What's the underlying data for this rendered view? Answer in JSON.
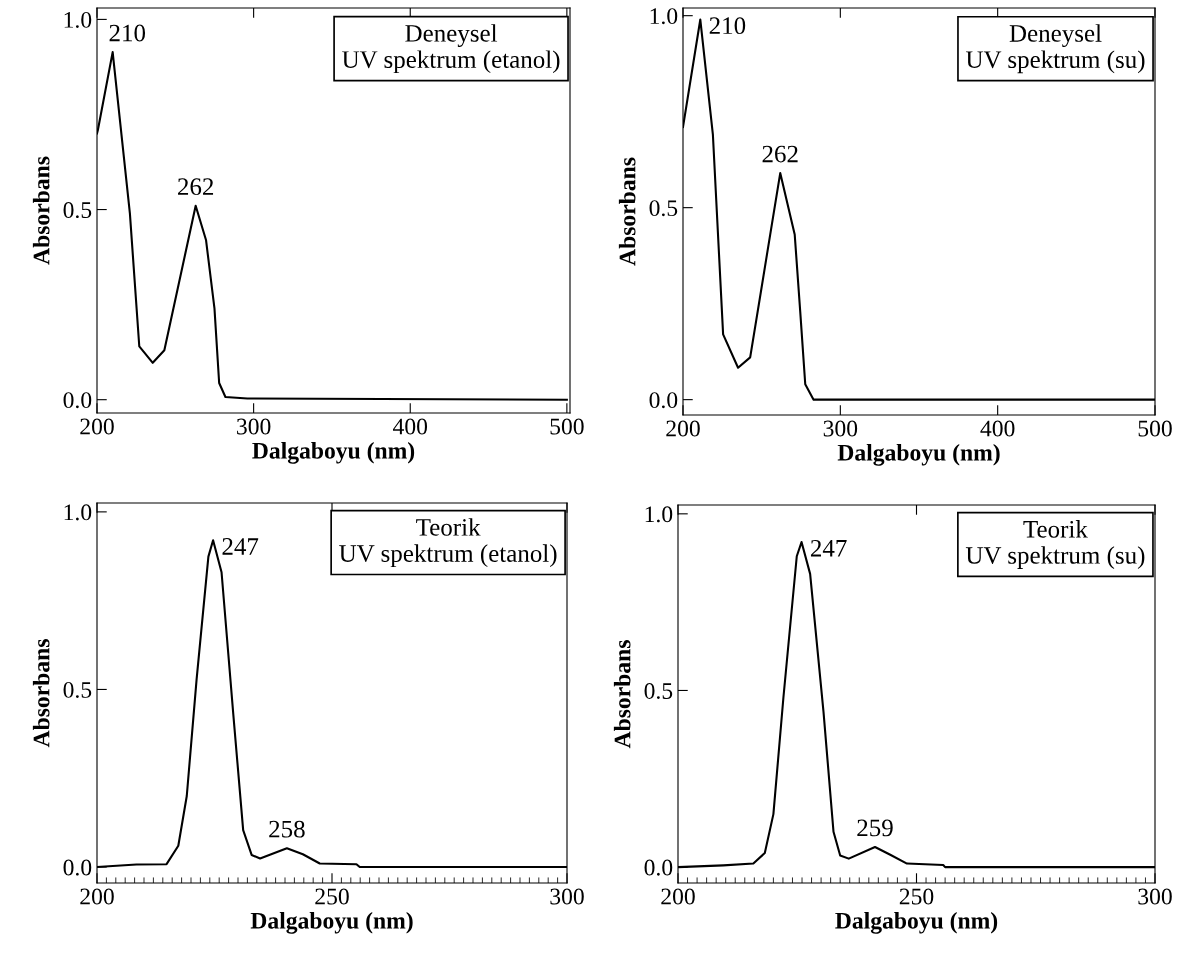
{
  "chart_data": [
    {
      "type": "line",
      "xlabel": "Dalgaboyu (nm)",
      "ylabel": "Absorbans",
      "x": [
        200,
        200.6,
        210,
        221,
        227,
        235.6,
        243,
        263,
        269.6,
        275,
        278,
        282,
        296,
        500
      ],
      "series": [
        {
          "color": "#000000",
          "values": [
            0.7,
            0.71,
            0.914,
            0.49,
            0.14,
            0.097,
            0.13,
            0.51,
            0.42,
            0.24,
            0.044,
            0.007,
            0.003,
            0.0
          ]
        }
      ],
      "xlim": [
        200,
        502
      ],
      "ylim": [
        -0.035,
        1.03
      ],
      "xticks": [
        200,
        300,
        400,
        500
      ],
      "yticks": [
        {
          "value": 0,
          "label": "0.0"
        },
        {
          "value": 0.5,
          "label": "0.5"
        },
        {
          "value": 1,
          "label": "1.0"
        }
      ],
      "annotations": [
        "Deneysel\nUV spektrum (etanol)",
        {
          "text": "210",
          "x": 210,
          "y": 0.914
        },
        {
          "text": "262",
          "x": 263,
          "y": 0.51
        }
      ],
      "grid": false,
      "legend": false,
      "marker": "none",
      "line_style": "solid"
    },
    {
      "type": "line",
      "xlabel": "Dalgaboyu (nm)",
      "ylabel": "Absorbans",
      "x": [
        200,
        211,
        219,
        225.5,
        235,
        242.7,
        261.8,
        271,
        274.5,
        277.7,
        283,
        500
      ],
      "series": [
        {
          "color": "#000000",
          "values": [
            0.71,
            0.99,
            0.69,
            0.17,
            0.083,
            0.11,
            0.59,
            0.43,
            0.23,
            0.04,
            0.0,
            0.0
          ]
        }
      ],
      "xlim": [
        200,
        500
      ],
      "ylim": [
        -0.04,
        1.02
      ],
      "xticks": [
        200,
        300,
        400,
        500
      ],
      "yticks": [
        {
          "value": 0,
          "label": "0.0"
        },
        {
          "value": 0.5,
          "label": "0.5"
        },
        {
          "value": 1,
          "label": "1.0"
        }
      ],
      "annotations": [
        "Deneysel\nUV spektrum (su)",
        {
          "text": "210",
          "x": 211,
          "y": 0.99
        },
        {
          "text": "262",
          "x": 261.8,
          "y": 0.59
        }
      ],
      "grid": false,
      "legend": false,
      "marker": "none",
      "line_style": "solid"
    },
    {
      "type": "line",
      "xlabel": "Dalgaboyu (nm)",
      "ylabel": "Absorbans",
      "x": [
        200,
        208.4,
        214.8,
        217.3,
        219.1,
        221.2,
        223.7,
        224.7,
        226.5,
        229,
        231.1,
        232.9,
        234.7,
        240.4,
        243.8,
        247.4,
        255.2,
        255.9,
        300
      ],
      "series": [
        {
          "color": "#000000",
          "values": [
            0.0,
            0.007,
            0.008,
            0.06,
            0.2,
            0.53,
            0.874,
            0.92,
            0.83,
            0.43,
            0.104,
            0.034,
            0.024,
            0.053,
            0.036,
            0.01,
            0.008,
            0.0,
            0.0
          ]
        }
      ],
      "xlim": [
        200,
        300
      ],
      "ylim": [
        -0.045,
        1.025
      ],
      "xticks": [
        200,
        250,
        300
      ],
      "yticks": [
        {
          "value": 0,
          "label": "0.0"
        },
        {
          "value": 0.5,
          "label": "0.5"
        },
        {
          "value": 1,
          "label": "1.0"
        }
      ],
      "annotations": [
        "Teorik\nUV spektrum (etanol)",
        {
          "text": "247",
          "x": 224.7,
          "y": 0.92
        },
        {
          "text": "258",
          "x": 240.4,
          "y": 0.053
        }
      ],
      "grid": false,
      "legend": false,
      "marker": "none",
      "line_style": "solid"
    },
    {
      "type": "line",
      "xlabel": "Dalgaboyu (nm)",
      "ylabel": "Absorbans",
      "x": [
        200,
        209.5,
        215.8,
        218.2,
        220,
        222.1,
        224.9,
        225.9,
        227.7,
        230.5,
        232.6,
        234,
        235.8,
        241.3,
        244.5,
        248,
        255.6,
        256,
        300
      ],
      "series": [
        {
          "color": "#000000",
          "values": [
            0.0,
            0.005,
            0.01,
            0.04,
            0.15,
            0.48,
            0.88,
            0.92,
            0.83,
            0.44,
            0.1,
            0.033,
            0.024,
            0.057,
            0.035,
            0.01,
            0.006,
            0.0,
            0.0
          ]
        }
      ],
      "xlim": [
        200,
        300
      ],
      "ylim": [
        -0.045,
        1.025
      ],
      "xticks": [
        200,
        250,
        300
      ],
      "yticks": [
        {
          "value": 0,
          "label": "0.0"
        },
        {
          "value": 0.5,
          "label": "0.5"
        },
        {
          "value": 1,
          "label": "1.0"
        }
      ],
      "annotations": [
        "Teorik\nUV spektrum (su)",
        {
          "text": "247",
          "x": 225.9,
          "y": 0.92
        },
        {
          "text": "259",
          "x": 241.3,
          "y": 0.057
        }
      ],
      "grid": false,
      "legend": false,
      "marker": "none",
      "line_style": "solid"
    }
  ]
}
